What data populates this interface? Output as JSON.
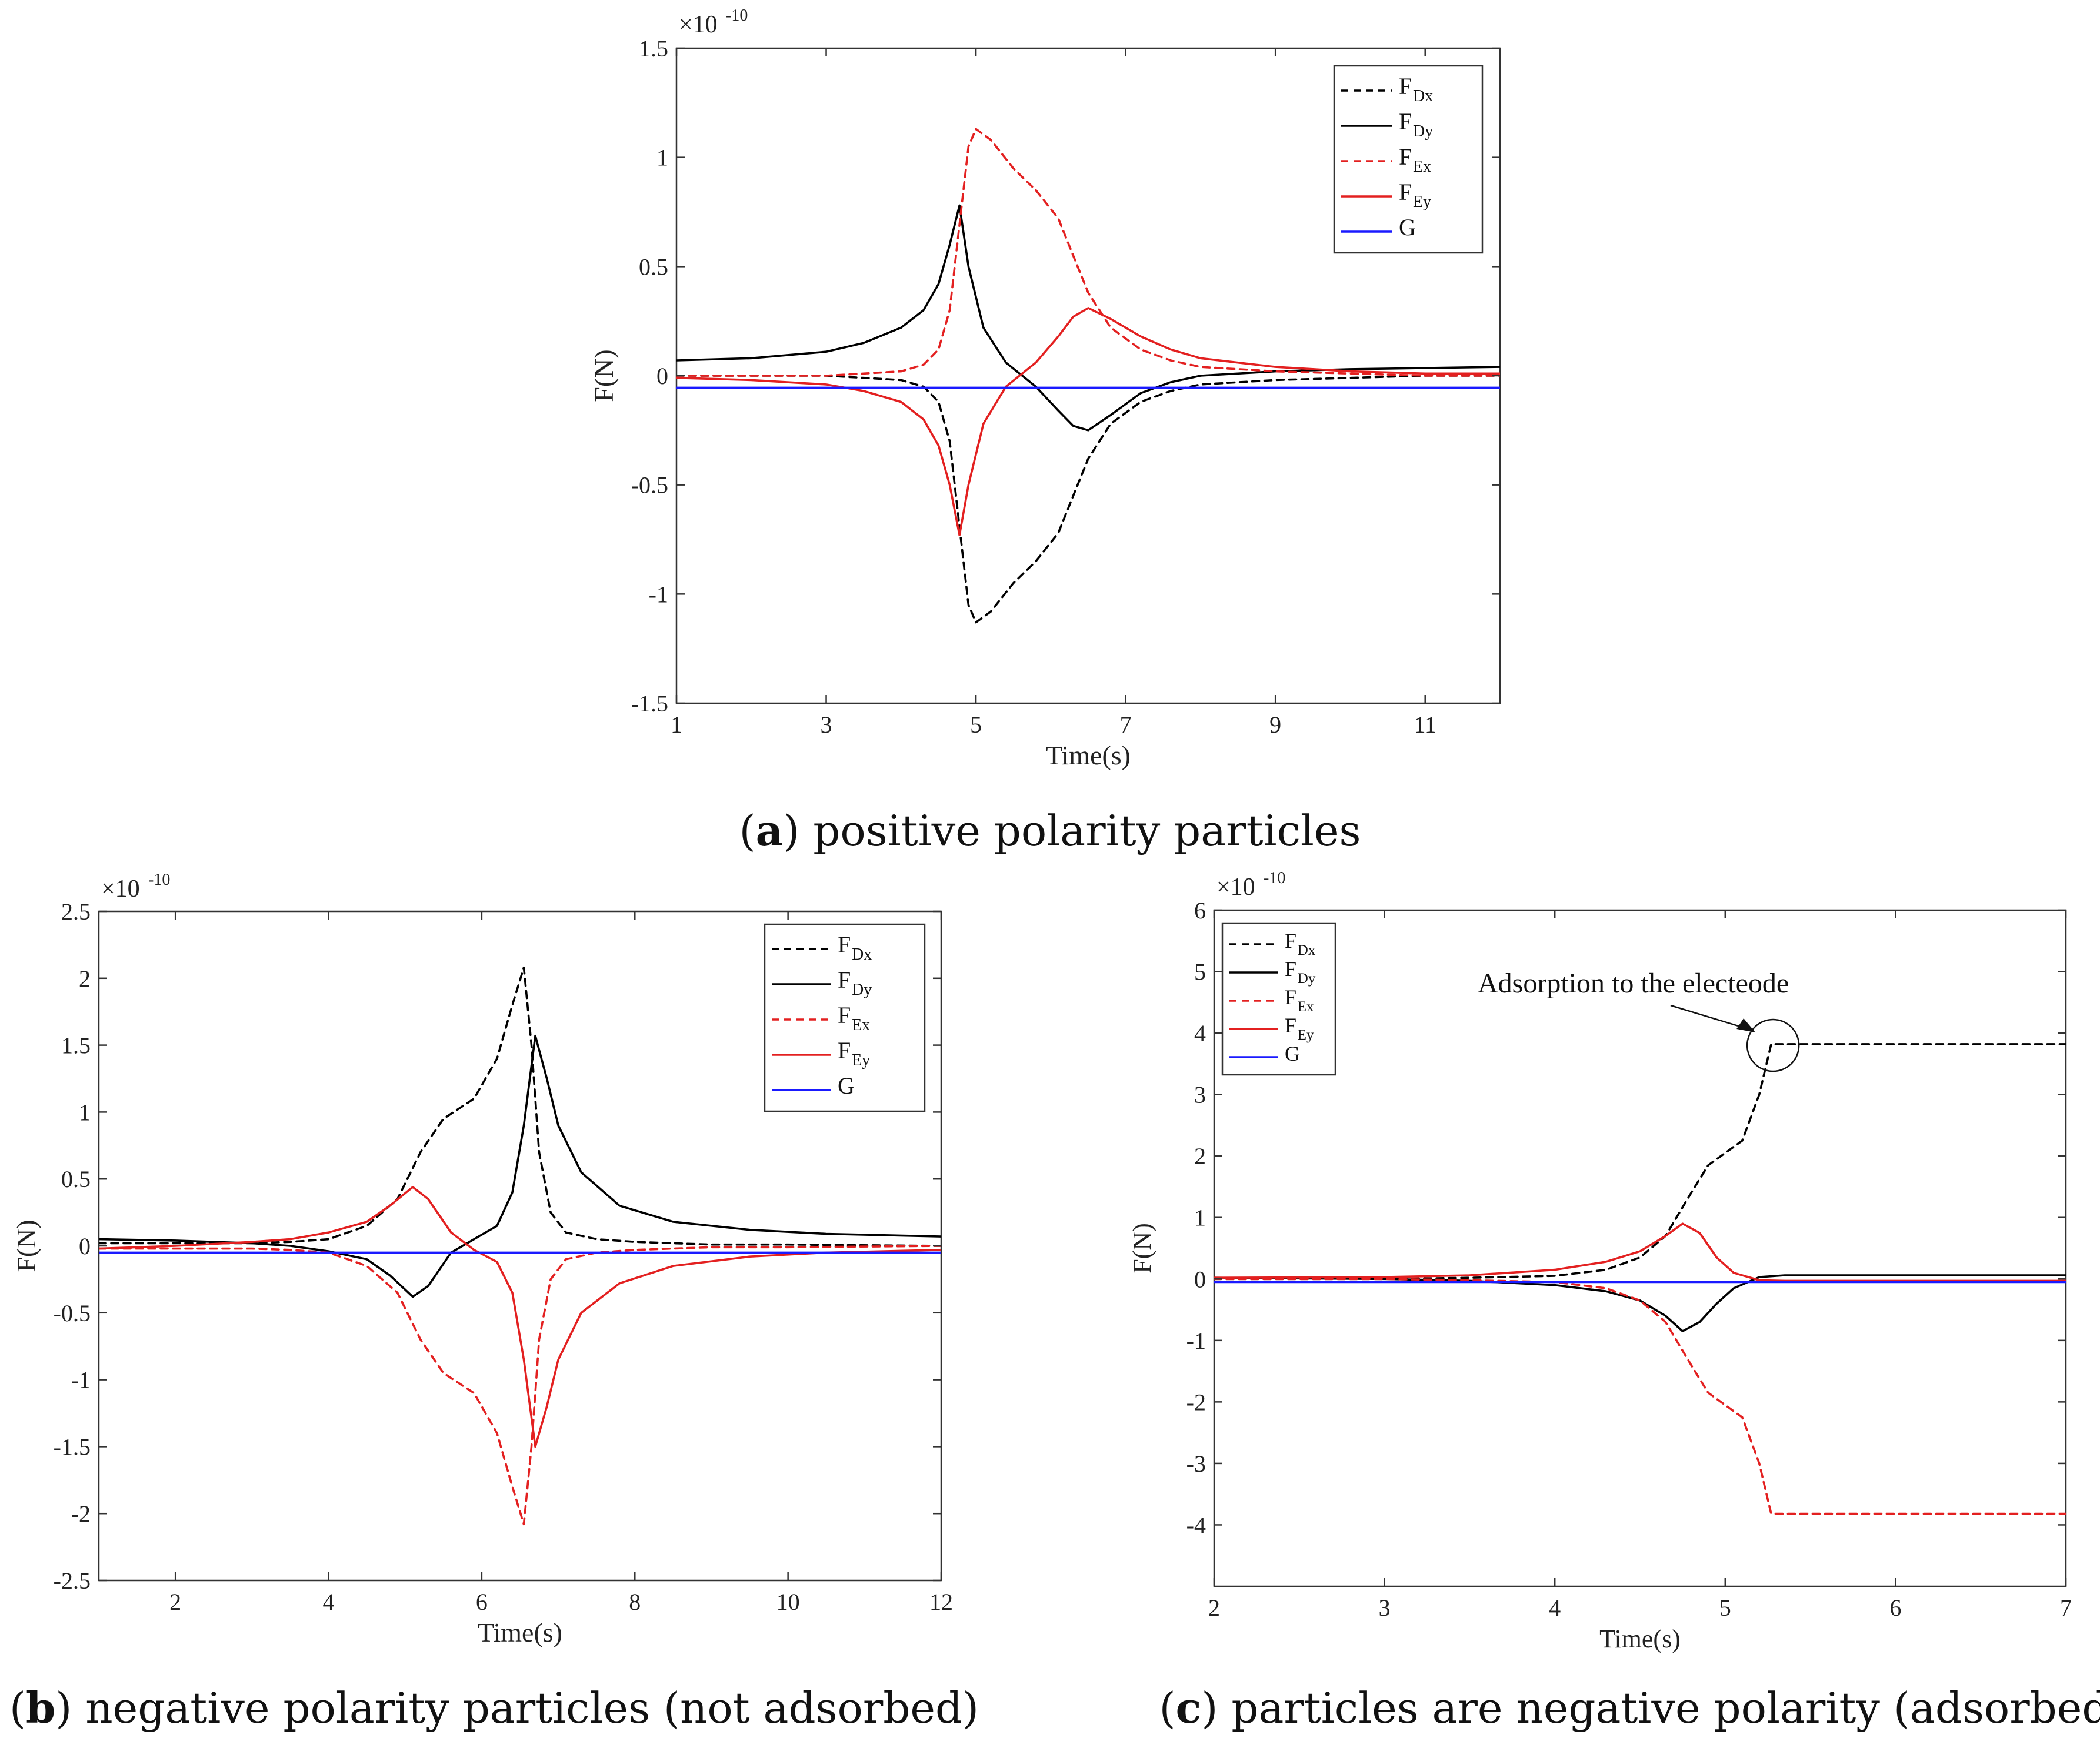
{
  "chart_data": [
    {
      "id": "a",
      "type": "line",
      "caption_letter": "a",
      "caption_text": ") positive polarity particles",
      "xlabel": "Time(s)",
      "ylabel": "F(N)",
      "exponent_label": "×10",
      "exponent_power": "-10",
      "xlim": [
        1,
        12
      ],
      "ylim": [
        -1.5,
        1.5
      ],
      "xticks": [
        1,
        3,
        5,
        7,
        9,
        11
      ],
      "xtick_labels": [
        "1",
        "3",
        "5",
        "7",
        "9",
        "11"
      ],
      "yticks": [
        -1.5,
        -1,
        -0.5,
        0,
        0.5,
        1,
        1.5
      ],
      "ytick_labels": [
        "-1.5",
        "-1",
        "-0.5",
        "0",
        "0.5",
        "1",
        "1.5"
      ],
      "legend_position": "top-right",
      "series": [
        {
          "name": "F",
          "sub": "Dx",
          "color": "#000000",
          "dash": true,
          "x": [
            1,
            2,
            3,
            3.5,
            4,
            4.3,
            4.5,
            4.65,
            4.8,
            4.9,
            5.0,
            5.2,
            5.5,
            5.8,
            6.1,
            6.3,
            6.5,
            6.8,
            7.2,
            7.6,
            8,
            9,
            10,
            11,
            12
          ],
          "y": [
            0,
            0,
            0,
            -0.01,
            -0.02,
            -0.05,
            -0.12,
            -0.3,
            -0.75,
            -1.05,
            -1.13,
            -1.08,
            -0.95,
            -0.85,
            -0.72,
            -0.55,
            -0.38,
            -0.22,
            -0.12,
            -0.07,
            -0.04,
            -0.02,
            -0.01,
            0,
            0
          ]
        },
        {
          "name": "F",
          "sub": "Dy",
          "color": "#000000",
          "dash": false,
          "x": [
            1,
            2,
            3,
            3.5,
            4,
            4.3,
            4.5,
            4.65,
            4.78,
            4.9,
            5.1,
            5.4,
            5.8,
            6.1,
            6.3,
            6.5,
            6.8,
            7.2,
            7.6,
            8,
            9,
            10,
            11,
            12
          ],
          "y": [
            0.07,
            0.08,
            0.11,
            0.15,
            0.22,
            0.3,
            0.42,
            0.6,
            0.78,
            0.5,
            0.22,
            0.06,
            -0.05,
            -0.16,
            -0.23,
            -0.25,
            -0.18,
            -0.08,
            -0.03,
            0,
            0.02,
            0.03,
            0.035,
            0.04
          ]
        },
        {
          "name": "F",
          "sub": "Ex",
          "color": "#e32020",
          "dash": true,
          "x": [
            1,
            2,
            3,
            3.5,
            4,
            4.3,
            4.5,
            4.65,
            4.8,
            4.9,
            5.0,
            5.2,
            5.5,
            5.8,
            6.1,
            6.3,
            6.5,
            6.8,
            7.2,
            7.6,
            8,
            9,
            10,
            11,
            12
          ],
          "y": [
            0,
            0,
            0,
            0.01,
            0.02,
            0.05,
            0.12,
            0.3,
            0.75,
            1.05,
            1.13,
            1.08,
            0.95,
            0.85,
            0.72,
            0.55,
            0.38,
            0.22,
            0.12,
            0.07,
            0.04,
            0.02,
            0.01,
            0,
            0
          ]
        },
        {
          "name": "F",
          "sub": "Ey",
          "color": "#e32020",
          "dash": false,
          "x": [
            1,
            2,
            3,
            3.5,
            4,
            4.3,
            4.5,
            4.65,
            4.78,
            4.9,
            5.1,
            5.4,
            5.8,
            6.1,
            6.3,
            6.5,
            6.8,
            7.2,
            7.6,
            8,
            9,
            10,
            11,
            12
          ],
          "y": [
            -0.01,
            -0.02,
            -0.04,
            -0.07,
            -0.12,
            -0.2,
            -0.32,
            -0.5,
            -0.73,
            -0.5,
            -0.22,
            -0.05,
            0.06,
            0.18,
            0.27,
            0.31,
            0.26,
            0.18,
            0.12,
            0.08,
            0.04,
            0.02,
            0.01,
            0.01
          ]
        },
        {
          "name": "G",
          "sub": "",
          "color": "#1a1aff",
          "dash": false,
          "x": [
            1,
            12
          ],
          "y": [
            -0.055,
            -0.055
          ]
        }
      ]
    },
    {
      "id": "b",
      "type": "line",
      "caption_letter": "b",
      "caption_text": ") negative polarity particles (not adsorbed)",
      "xlabel": "Time(s)",
      "ylabel": "F(N)",
      "exponent_label": "×10",
      "exponent_power": "-10",
      "xlim": [
        1,
        12
      ],
      "ylim": [
        -2.5,
        2.5
      ],
      "xticks": [
        2,
        4,
        6,
        8,
        10,
        12
      ],
      "xtick_labels": [
        "2",
        "4",
        "6",
        "8",
        "10",
        "12"
      ],
      "yticks": [
        -2.5,
        -2,
        -1.5,
        -1,
        -0.5,
        0,
        0.5,
        1,
        1.5,
        2,
        2.5
      ],
      "ytick_labels": [
        "-2.5",
        "-2",
        "-1.5",
        "-1",
        "-0.5",
        "0",
        "0.5",
        "1",
        "1.5",
        "2",
        "2.5"
      ],
      "legend_position": "top-right",
      "series": [
        {
          "name": "F",
          "sub": "Dx",
          "color": "#000000",
          "dash": true,
          "x": [
            1,
            2,
            3,
            3.5,
            4,
            4.5,
            4.9,
            5.2,
            5.5,
            5.9,
            6.2,
            6.4,
            6.55,
            6.65,
            6.75,
            6.9,
            7.1,
            7.5,
            8,
            9,
            10,
            12
          ],
          "y": [
            0.02,
            0.02,
            0.02,
            0.03,
            0.05,
            0.15,
            0.35,
            0.7,
            0.95,
            1.1,
            1.4,
            1.8,
            2.08,
            1.5,
            0.7,
            0.25,
            0.1,
            0.05,
            0.03,
            0.01,
            0.01,
            0
          ]
        },
        {
          "name": "F",
          "sub": "Dy",
          "color": "#000000",
          "dash": false,
          "x": [
            1,
            2,
            3,
            3.5,
            4,
            4.5,
            4.8,
            5.1,
            5.3,
            5.6,
            5.9,
            6.2,
            6.4,
            6.55,
            6.7,
            6.85,
            7.0,
            7.3,
            7.8,
            8.5,
            9.5,
            10.5,
            12
          ],
          "y": [
            0.05,
            0.04,
            0.02,
            0,
            -0.04,
            -0.1,
            -0.22,
            -0.38,
            -0.3,
            -0.05,
            0.05,
            0.15,
            0.4,
            0.9,
            1.57,
            1.25,
            0.9,
            0.55,
            0.3,
            0.18,
            0.12,
            0.09,
            0.07
          ]
        },
        {
          "name": "F",
          "sub": "Ex",
          "color": "#e32020",
          "dash": true,
          "x": [
            1,
            2,
            3,
            3.5,
            4,
            4.5,
            4.9,
            5.2,
            5.5,
            5.9,
            6.2,
            6.4,
            6.55,
            6.65,
            6.75,
            6.9,
            7.1,
            7.5,
            8,
            9,
            10,
            12
          ],
          "y": [
            -0.02,
            -0.02,
            -0.02,
            -0.03,
            -0.05,
            -0.15,
            -0.35,
            -0.7,
            -0.95,
            -1.1,
            -1.4,
            -1.8,
            -2.08,
            -1.5,
            -0.7,
            -0.25,
            -0.1,
            -0.05,
            -0.03,
            -0.01,
            -0.01,
            0
          ]
        },
        {
          "name": "F",
          "sub": "Ey",
          "color": "#e32020",
          "dash": false,
          "x": [
            1,
            2,
            3,
            3.5,
            4,
            4.5,
            4.8,
            5.1,
            5.3,
            5.6,
            5.9,
            6.2,
            6.4,
            6.55,
            6.7,
            6.85,
            7.0,
            7.3,
            7.8,
            8.5,
            9.5,
            10.5,
            12
          ],
          "y": [
            -0.02,
            0,
            0.03,
            0.05,
            0.1,
            0.18,
            0.3,
            0.44,
            0.35,
            0.1,
            -0.03,
            -0.12,
            -0.35,
            -0.85,
            -1.5,
            -1.2,
            -0.85,
            -0.5,
            -0.28,
            -0.15,
            -0.08,
            -0.05,
            -0.03
          ]
        },
        {
          "name": "G",
          "sub": "",
          "color": "#1a1aff",
          "dash": false,
          "x": [
            1,
            12
          ],
          "y": [
            -0.05,
            -0.05
          ]
        }
      ]
    },
    {
      "id": "c",
      "type": "line",
      "caption_letter": "c",
      "caption_text": ") particles are negative polarity (adsorbed)",
      "xlabel": "Time(s)",
      "ylabel": "F(N)",
      "exponent_label": "×10",
      "exponent_power": "-10",
      "xlim": [
        2,
        7
      ],
      "ylim": [
        -5,
        6
      ],
      "xticks": [
        2,
        3,
        4,
        5,
        6,
        7
      ],
      "xtick_labels": [
        "2",
        "3",
        "4",
        "5",
        "6",
        "7"
      ],
      "yticks": [
        -4,
        -3,
        -2,
        -1,
        0,
        1,
        2,
        3,
        4,
        5,
        6
      ],
      "ytick_labels": [
        "-4",
        "-3",
        "-2",
        "-1",
        "0",
        "1",
        "2",
        "3",
        "4",
        "5",
        "6"
      ],
      "legend_position": "top-left",
      "annotation": "Adsorption to the electeode",
      "annotation_target": [
        5.35,
        3.8
      ],
      "series": [
        {
          "name": "F",
          "sub": "Dx",
          "color": "#000000",
          "dash": true,
          "x": [
            2,
            3,
            3.5,
            4,
            4.3,
            4.5,
            4.65,
            4.8,
            4.9,
            5.0,
            5.1,
            5.2,
            5.27,
            5.3,
            7
          ],
          "y": [
            0,
            0,
            0.02,
            0.05,
            0.15,
            0.35,
            0.7,
            1.4,
            1.85,
            2.05,
            2.25,
            3.0,
            3.82,
            3.82,
            3.82
          ]
        },
        {
          "name": "F",
          "sub": "Dy",
          "color": "#000000",
          "dash": false,
          "x": [
            2,
            3,
            3.5,
            4,
            4.3,
            4.5,
            4.65,
            4.75,
            4.85,
            4.95,
            5.05,
            5.2,
            5.35,
            7
          ],
          "y": [
            0.02,
            0,
            -0.03,
            -0.1,
            -0.2,
            -0.35,
            -0.6,
            -0.85,
            -0.7,
            -0.4,
            -0.15,
            0.03,
            0.06,
            0.06
          ]
        },
        {
          "name": "F",
          "sub": "Ex",
          "color": "#e32020",
          "dash": true,
          "x": [
            2,
            3,
            3.5,
            4,
            4.3,
            4.5,
            4.65,
            4.8,
            4.9,
            5.0,
            5.1,
            5.2,
            5.27,
            5.3,
            7
          ],
          "y": [
            0,
            0,
            -0.02,
            -0.05,
            -0.15,
            -0.35,
            -0.7,
            -1.4,
            -1.85,
            -2.05,
            -2.25,
            -3.0,
            -3.82,
            -3.82,
            -3.82
          ]
        },
        {
          "name": "F",
          "sub": "Ey",
          "color": "#e32020",
          "dash": false,
          "x": [
            2,
            3,
            3.5,
            4,
            4.3,
            4.5,
            4.65,
            4.75,
            4.85,
            4.95,
            5.05,
            5.2,
            5.35,
            7
          ],
          "y": [
            0.02,
            0.03,
            0.06,
            0.15,
            0.28,
            0.45,
            0.7,
            0.9,
            0.75,
            0.35,
            0.1,
            -0.02,
            -0.03,
            -0.03
          ]
        },
        {
          "name": "G",
          "sub": "",
          "color": "#1a1aff",
          "dash": false,
          "x": [
            2,
            7
          ],
          "y": [
            -0.05,
            -0.05
          ]
        }
      ]
    }
  ]
}
